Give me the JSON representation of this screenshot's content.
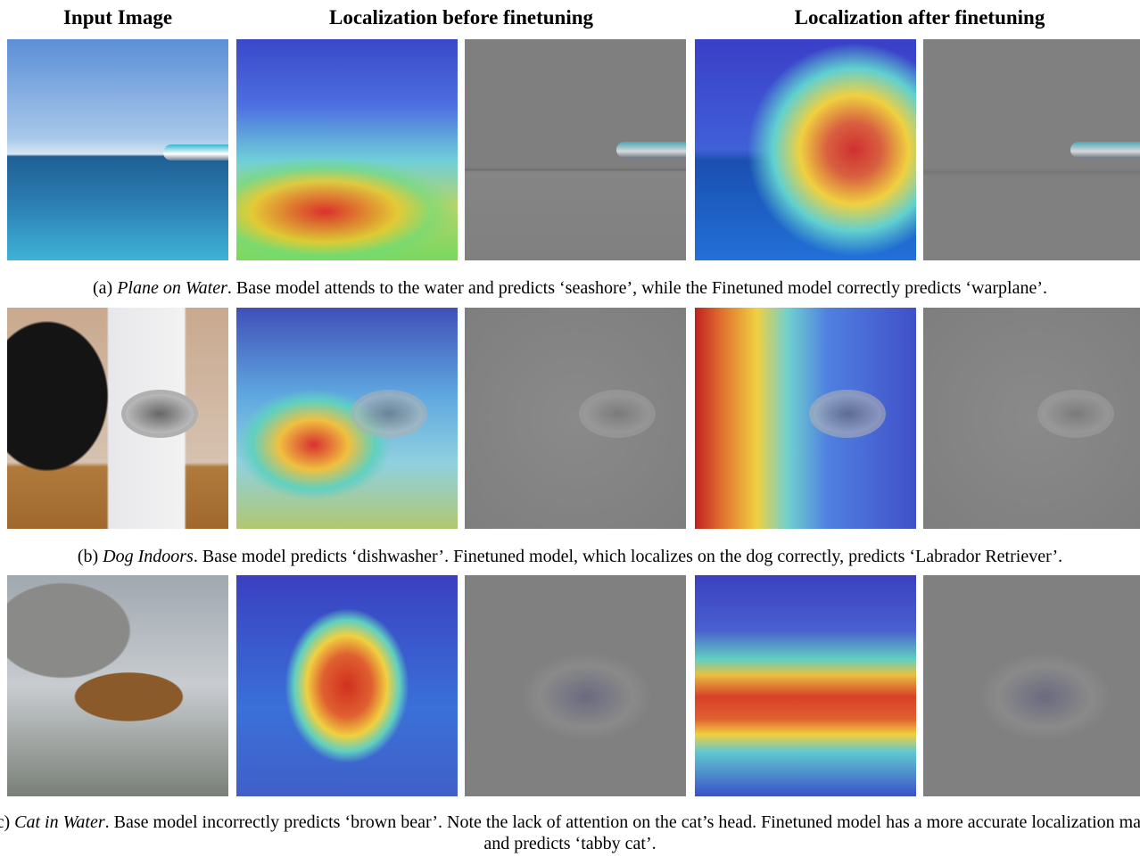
{
  "headers": [
    "Input Image",
    "Localization before finetuning",
    "Localization after finetuning"
  ],
  "rows": [
    {
      "label": "(a)",
      "name": "Plane on Water",
      "text": ". Base model attends to the water and predicts ‘seashore’, while the Finetuned model correctly predicts ‘warplane’."
    },
    {
      "label": "(b)",
      "name": "Dog Indoors",
      "text": ". Base model predicts ‘dishwasher’. Finetuned model, which localizes on the dog correctly, predicts ‘Labrador Retriever’."
    },
    {
      "label": "(c)",
      "name": "Cat in Water",
      "text": ". Base model incorrectly predicts ‘brown bear’. Note the lack of attention on the cat’s head. Finetuned model has a more accurate localization map and predicts ‘tabby cat’."
    }
  ]
}
